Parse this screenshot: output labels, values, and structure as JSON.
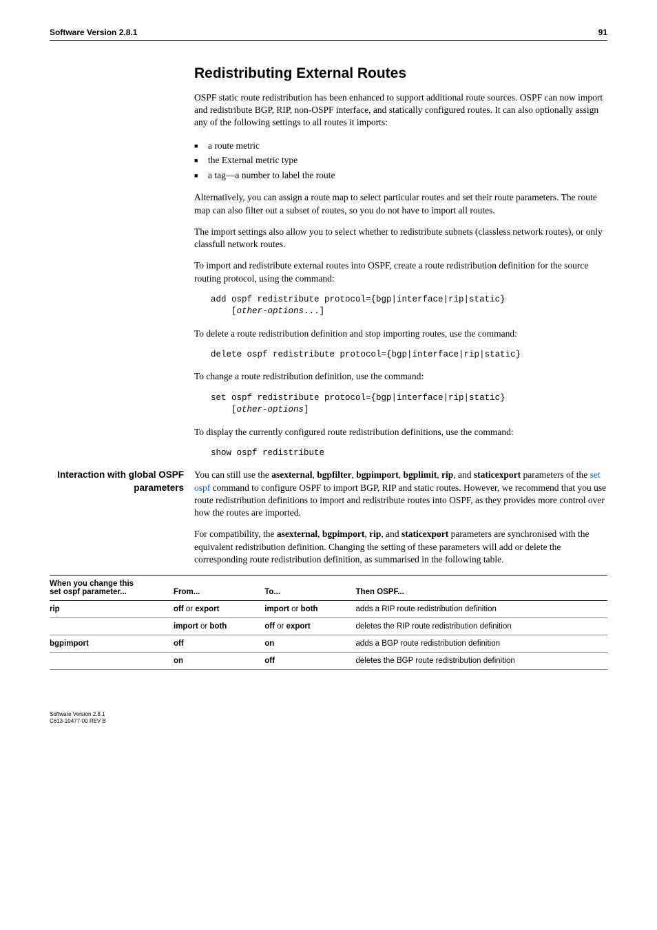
{
  "header": {
    "title": "Software Version 2.8.1",
    "page": "91"
  },
  "section": {
    "title": "Redistributing External Routes",
    "intro": "OSPF static route redistribution has been enhanced to support additional route sources. OSPF can now import and redistribute BGP, RIP, non-OSPF interface, and statically configured routes. It can also optionally assign any of the following settings to all routes it imports:",
    "bullets": [
      "a route metric",
      "the External metric type",
      "a tag—a number to label the route"
    ],
    "para_alt": "Alternatively, you can assign a route map to select particular routes and set their route parameters. The route map can also filter out a subset of routes, so you do not have to import all routes.",
    "para_import_settings": "The import settings also allow you to select whether to redistribute subnets (classless network routes), or only classfull network routes.",
    "para_to_import": "To import and redistribute external routes into OSPF, create a route redistribution definition for the source routing protocol, using the command:",
    "code_add_pre": "add ospf redistribute protocol={bgp|interface|rip|static}\n    [",
    "code_add_italic": "other-options",
    "code_add_post": "...]",
    "para_to_delete": "To delete a route redistribution definition and stop importing routes, use the command:",
    "code_delete": "delete ospf redistribute protocol={bgp|interface|rip|static}",
    "para_to_change": "To change a route redistribution definition, use the command:",
    "code_set_pre": "set ospf redistribute protocol={bgp|interface|rip|static}\n    [",
    "code_set_italic": "other-options",
    "code_set_post": "]",
    "para_to_display": "To display the currently configured route redistribution definitions, use the command:",
    "code_show": "show ospf redistribute"
  },
  "sidebar": {
    "label": "Interaction with global OSPF parameters",
    "p1_pre": "You can still use the ",
    "p1_terms": "asexternal, bgpfilter, bgpimport, bgplimit, rip",
    "p1_mid1": ", and ",
    "p1_term_last": "staticexport",
    "p1_mid2": " parameters of the ",
    "p1_link": "set ospf",
    "p1_post": " command to configure OSPF to import BGP, RIP and static routes. However, we recommend that you use route redistribution definitions to import and redistribute routes into OSPF, as they provides more control over how the routes are imported.",
    "p2_pre": "For compatibility, the ",
    "p2_t1": "asexternal",
    "p2_t2": "bgpimport",
    "p2_t3": "rip",
    "p2_t4": "staticexport",
    "p2_post": " parameters are synchronised with the equivalent redistribution definition. Changing the setting of these parameters will add or delete the corresponding route redistribution definition, as summarised in the following table."
  },
  "table": {
    "head": {
      "c1a": "When you change this",
      "c1b": "set ospf parameter...",
      "c2": "From...",
      "c3": "To...",
      "c4": "Then OSPF..."
    },
    "rows": [
      {
        "c1": "rip",
        "c2a": "off",
        "c2m": " or ",
        "c2b": "export",
        "c3a": "import",
        "c3m": " or ",
        "c3b": "both",
        "c4": "adds a RIP route redistribution definition"
      },
      {
        "c1": "",
        "c2a": "import",
        "c2m": " or ",
        "c2b": "both",
        "c3a": "off",
        "c3m": " or ",
        "c3b": "export",
        "c4": "deletes the RIP route redistribution definition"
      },
      {
        "c1": "bgpimport",
        "c2a": "off",
        "c2m": "",
        "c2b": "",
        "c3a": "on",
        "c3m": "",
        "c3b": "",
        "c4": "adds a BGP route redistribution definition"
      },
      {
        "c1": "",
        "c2a": "on",
        "c2m": "",
        "c2b": "",
        "c3a": "off",
        "c3m": "",
        "c3b": "",
        "c4": "deletes the BGP route redistribution definition"
      }
    ]
  },
  "footer": {
    "line1": "Software Version 2.8.1",
    "line2": "C613-10477-00 REV B"
  }
}
